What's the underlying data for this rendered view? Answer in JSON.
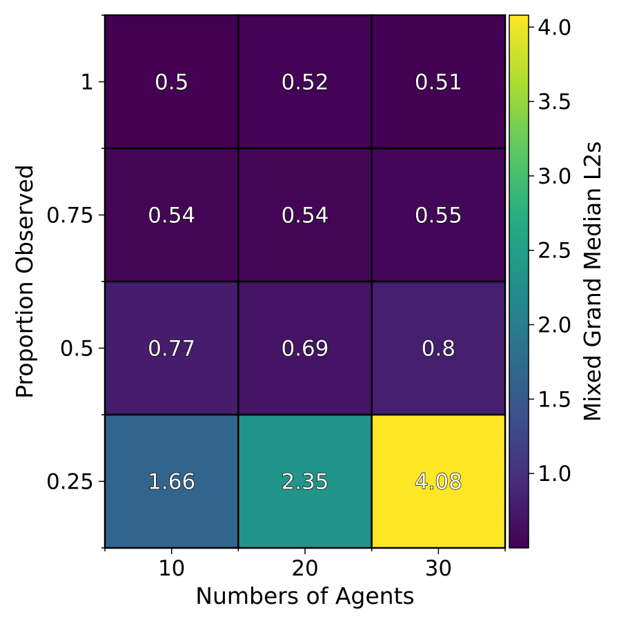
{
  "chart_data": {
    "type": "heatmap",
    "xlabel": "Numbers of Agents",
    "ylabel": "Proportion Observed",
    "x_categories": [
      "10",
      "20",
      "30"
    ],
    "y_categories": [
      "1",
      "0.75",
      "0.5",
      "0.25"
    ],
    "values": [
      [
        0.5,
        0.52,
        0.51
      ],
      [
        0.54,
        0.54,
        0.55
      ],
      [
        0.77,
        0.69,
        0.8
      ],
      [
        1.66,
        2.35,
        4.08
      ]
    ],
    "cell_labels": [
      [
        "0.5",
        "0.52",
        "0.51"
      ],
      [
        "0.54",
        "0.54",
        "0.55"
      ],
      [
        "0.77",
        "0.69",
        "0.8"
      ],
      [
        "1.66",
        "2.35",
        "4.08"
      ]
    ],
    "colormap": "viridis",
    "colorbar": {
      "label": "Mixed Grand Median L2s",
      "range": [
        0.5,
        4.08
      ],
      "ticks": [
        "1.0",
        "1.5",
        "2.0",
        "2.5",
        "3.0",
        "3.5",
        "4.0"
      ],
      "tick_values": [
        1.0,
        1.5,
        2.0,
        2.5,
        3.0,
        3.5,
        4.0
      ]
    },
    "grid": false
  }
}
